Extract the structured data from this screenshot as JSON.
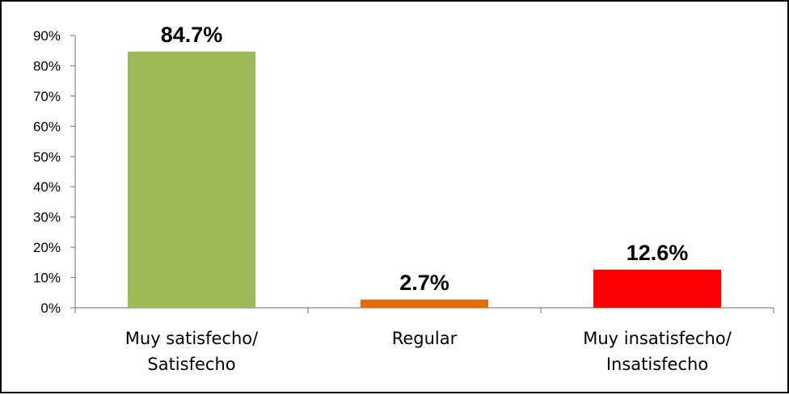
{
  "chart_data": {
    "type": "bar",
    "title": "",
    "xlabel": "",
    "ylabel": "",
    "categories": [
      [
        "Muy satisfecho/",
        "Satisfecho"
      ],
      [
        "Regular"
      ],
      [
        "Muy insatisfecho/",
        "Insatisfecho"
      ]
    ],
    "values": [
      84.7,
      2.7,
      12.6
    ],
    "data_labels": [
      "84.7%",
      "2.7%",
      "12.6%"
    ],
    "bar_colors": [
      "#9bbb59",
      "#e36c0a",
      "#ff0000"
    ],
    "ylim": [
      0,
      90
    ],
    "yticks": [
      0,
      10,
      20,
      30,
      40,
      50,
      60,
      70,
      80,
      90
    ],
    "ytick_labels": [
      "0%",
      "10%",
      "20%",
      "30%",
      "40%",
      "50%",
      "60%",
      "70%",
      "80%",
      "90%"
    ],
    "grid": false,
    "legend": "none"
  }
}
